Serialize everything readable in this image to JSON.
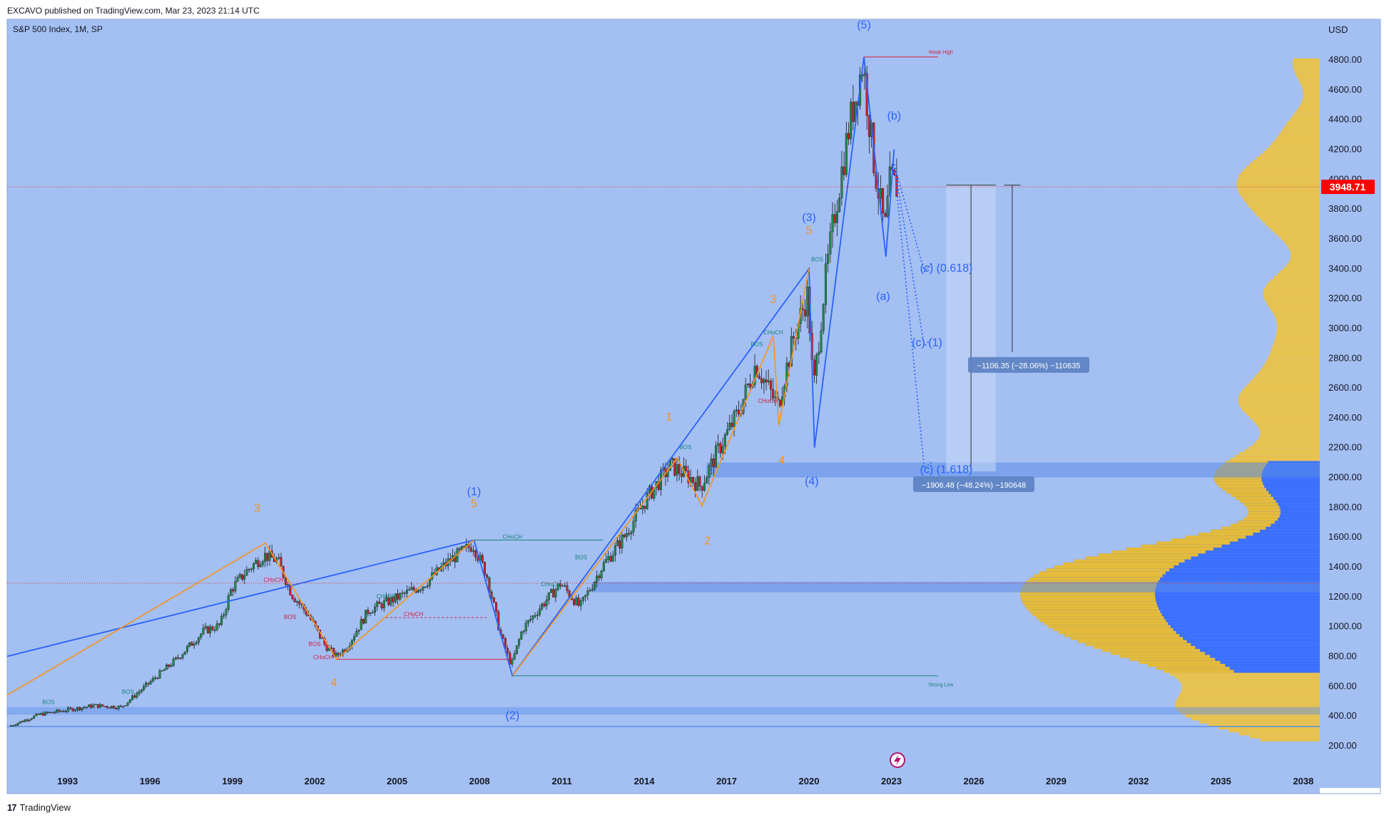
{
  "header": {
    "publisher": "EXCAVO published on TradingView.com, Mar 23, 2023 21:14 UTC"
  },
  "footer": {
    "brand": "TradingView",
    "logo_glyph": "17"
  },
  "colors": {
    "plot_bg": "#a4bff2",
    "up": "#1e8a4c",
    "down": "#cc1f2e",
    "blue_wave": "#2962ff",
    "orange_wave": "#f7931a",
    "label_blue": "#2962ff",
    "label_orange": "#f7931a",
    "choch_green": "#13857a",
    "choch_red": "#d4213a",
    "profile_yellow": "#f7c325",
    "profile_blue": "#2962ff",
    "price_badge": "#ff0000"
  },
  "chart_data": {
    "type": "candlestick",
    "title": "S&P 500 Index, 1M, SP",
    "currency": "USD",
    "last_price": "3948.71",
    "x_ticks": [
      "1993",
      "1996",
      "1999",
      "2002",
      "2005",
      "2008",
      "2011",
      "2014",
      "2017",
      "2020",
      "2023",
      "2026",
      "2029",
      "2032",
      "2035",
      "2038"
    ],
    "y_ticks": [
      "200.00",
      "400.00",
      "600.00",
      "800.00",
      "1000.00",
      "1200.00",
      "1400.00",
      "1600.00",
      "1800.00",
      "2000.00",
      "2200.00",
      "2400.00",
      "2600.00",
      "2800.00",
      "3000.00",
      "3200.00",
      "3400.00",
      "3600.00",
      "3800.00",
      "4000.00",
      "4200.00",
      "4400.00",
      "4600.00",
      "4800.00"
    ],
    "ylim": [
      40,
      5000
    ],
    "xlim": [
      1990.8,
      2038.6
    ],
    "price_path": [
      [
        1990.9,
        330
      ],
      [
        1992.0,
        410
      ],
      [
        1993.0,
        440
      ],
      [
        1994.0,
        470
      ],
      [
        1995.0,
        460
      ],
      [
        1996.0,
        620
      ],
      [
        1997.0,
        780
      ],
      [
        1998.0,
        970
      ],
      [
        1998.6,
        1010
      ],
      [
        1999.0,
        1250
      ],
      [
        1999.6,
        1380
      ],
      [
        2000.2,
        1480
      ],
      [
        2000.7,
        1440
      ],
      [
        2001.2,
        1220
      ],
      [
        2001.8,
        1080
      ],
      [
        2002.4,
        880
      ],
      [
        2002.8,
        800
      ],
      [
        2003.2,
        860
      ],
      [
        2004.0,
        1110
      ],
      [
        2005.0,
        1190
      ],
      [
        2006.0,
        1280
      ],
      [
        2007.0,
        1450
      ],
      [
        2007.8,
        1550
      ],
      [
        2008.3,
        1350
      ],
      [
        2008.8,
        950
      ],
      [
        2009.2,
        740
      ],
      [
        2009.6,
        980
      ],
      [
        2010.3,
        1140
      ],
      [
        2011.0,
        1290
      ],
      [
        2011.7,
        1130
      ],
      [
        2012.5,
        1400
      ],
      [
        2013.3,
        1600
      ],
      [
        2014.2,
        1880
      ],
      [
        2015.0,
        2080
      ],
      [
        2015.7,
        2000
      ],
      [
        2016.1,
        1940
      ],
      [
        2016.7,
        2170
      ],
      [
        2017.5,
        2450
      ],
      [
        2018.1,
        2760
      ],
      [
        2018.9,
        2480
      ],
      [
        2019.5,
        2950
      ],
      [
        2020.0,
        3230
      ],
      [
        2020.2,
        2580
      ],
      [
        2020.6,
        3270
      ],
      [
        2021.0,
        3800
      ],
      [
        2021.5,
        4350
      ],
      [
        2022.0,
        4780
      ],
      [
        2022.4,
        4120
      ],
      [
        2022.8,
        3650
      ],
      [
        2023.0,
        4000
      ],
      [
        2023.2,
        3948.71
      ]
    ],
    "structure_labels": [
      {
        "text": "CHoCH",
        "x": 2009.2,
        "y": 1590,
        "color": "choch_green"
      },
      {
        "text": "CHoCH",
        "x": 2002.3,
        "y": 780,
        "color": "choch_red"
      },
      {
        "text": "CHoCH",
        "x": 2005.6,
        "y": 1070,
        "color": "choch_red"
      },
      {
        "text": "CHoCH",
        "x": 2000.5,
        "y": 1300,
        "color": "choch_red"
      },
      {
        "text": "CHoCH",
        "x": 2004.6,
        "y": 1190,
        "color": "choch_green"
      },
      {
        "text": "CHoCH",
        "x": 2010.6,
        "y": 1270,
        "color": "choch_green"
      },
      {
        "text": "CHoCH",
        "x": 2018.7,
        "y": 2960,
        "color": "choch_green"
      },
      {
        "text": "CHoCH",
        "x": 2018.5,
        "y": 2500,
        "color": "choch_red"
      },
      {
        "text": "BOS",
        "x": 1992.3,
        "y": 480,
        "color": "choch_green"
      },
      {
        "text": "BOS",
        "x": 1995.2,
        "y": 550,
        "color": "choch_green"
      },
      {
        "text": "BOS",
        "x": 2001.1,
        "y": 1050,
        "color": "choch_red"
      },
      {
        "text": "BOS",
        "x": 2002.0,
        "y": 870,
        "color": "choch_red"
      },
      {
        "text": "BOS",
        "x": 2011.7,
        "y": 1450,
        "color": "choch_green"
      },
      {
        "text": "BOS",
        "x": 2015.5,
        "y": 2190,
        "color": "choch_green"
      },
      {
        "text": "BOS",
        "x": 2018.1,
        "y": 2880,
        "color": "choch_green"
      },
      {
        "text": "BOS",
        "x": 2020.3,
        "y": 3450,
        "color": "choch_green"
      },
      {
        "text": "Weak High",
        "x": 2024.8,
        "y": 4840,
        "color": "choch_red"
      },
      {
        "text": "Strong Low",
        "x": 2024.8,
        "y": 600,
        "color": "choch_green"
      }
    ],
    "wave_labels": [
      {
        "text": "(5)",
        "x": 2022.0,
        "y": 5010,
        "color": "label_blue"
      },
      {
        "text": "(b)",
        "x": 2023.1,
        "y": 4400,
        "color": "label_blue"
      },
      {
        "text": "(3)",
        "x": 2020.0,
        "y": 3720,
        "color": "label_blue"
      },
      {
        "text": "5",
        "x": 2020.0,
        "y": 3630,
        "color": "label_orange"
      },
      {
        "text": "(a)",
        "x": 2022.7,
        "y": 3190,
        "color": "label_blue"
      },
      {
        "text": "3",
        "x": 2018.7,
        "y": 3170,
        "color": "label_orange"
      },
      {
        "text": "(c) (0.618)",
        "x": 2025.0,
        "y": 3380,
        "color": "label_blue"
      },
      {
        "text": "(c) (1)",
        "x": 2024.3,
        "y": 2880,
        "color": "label_blue"
      },
      {
        "text": "1",
        "x": 2014.9,
        "y": 2380,
        "color": "label_orange"
      },
      {
        "text": "(c) (1.618)",
        "x": 2025.0,
        "y": 2030,
        "color": "label_blue"
      },
      {
        "text": "4",
        "x": 2019.0,
        "y": 2090,
        "color": "label_orange"
      },
      {
        "text": "(4)",
        "x": 2020.1,
        "y": 1950,
        "color": "label_blue"
      },
      {
        "text": "(1)",
        "x": 2007.8,
        "y": 1880,
        "color": "label_blue"
      },
      {
        "text": "5",
        "x": 2007.8,
        "y": 1800,
        "color": "label_orange"
      },
      {
        "text": "3",
        "x": 1999.9,
        "y": 1770,
        "color": "label_orange"
      },
      {
        "text": "2",
        "x": 2016.3,
        "y": 1550,
        "color": "label_orange"
      },
      {
        "text": "4",
        "x": 2002.7,
        "y": 600,
        "color": "label_orange"
      },
      {
        "text": "(2)",
        "x": 2009.2,
        "y": 380,
        "color": "label_blue"
      }
    ],
    "measurements": [
      {
        "text": "−1106.35 (−28.06%) −110635",
        "x": 2028.0,
        "y": 2750
      },
      {
        "text": "−1906.48 (−48.24%) −190648",
        "x": 2026.0,
        "y": 1950
      }
    ],
    "elliott_blue": [
      [
        1990.8,
        800
      ],
      [
        2007.8,
        1580
      ],
      [
        2009.2,
        670
      ],
      [
        2020.0,
        3400
      ],
      [
        2020.2,
        2200
      ],
      [
        2022.0,
        4820
      ],
      [
        2022.8,
        3480
      ],
      [
        2023.1,
        4200
      ]
    ],
    "elliott_orange": [
      [
        1990.8,
        540
      ],
      [
        2000.2,
        1560
      ],
      [
        2002.8,
        780
      ],
      [
        2007.8,
        1580
      ]
    ],
    "elliott_orange_2": [
      [
        2009.2,
        670
      ],
      [
        2015.2,
        2130
      ],
      [
        2016.1,
        1810
      ],
      [
        2018.7,
        2950
      ],
      [
        2018.9,
        2350
      ],
      [
        2020.0,
        3400
      ]
    ],
    "projections": [
      {
        "name": "(c) (0.618)",
        "points": [
          [
            2023.1,
            4100
          ],
          [
            2024.2,
            3380
          ],
          [
            2024.5,
            3440
          ]
        ]
      },
      {
        "name": "(c) (1)",
        "points": [
          [
            2023.1,
            4100
          ],
          [
            2024.2,
            2880
          ],
          [
            2024.5,
            2940
          ]
        ]
      },
      {
        "name": "(c) (1.618)",
        "points": [
          [
            2023.1,
            4100
          ],
          [
            2024.2,
            2060
          ],
          [
            2024.5,
            2110
          ]
        ]
      }
    ]
  }
}
